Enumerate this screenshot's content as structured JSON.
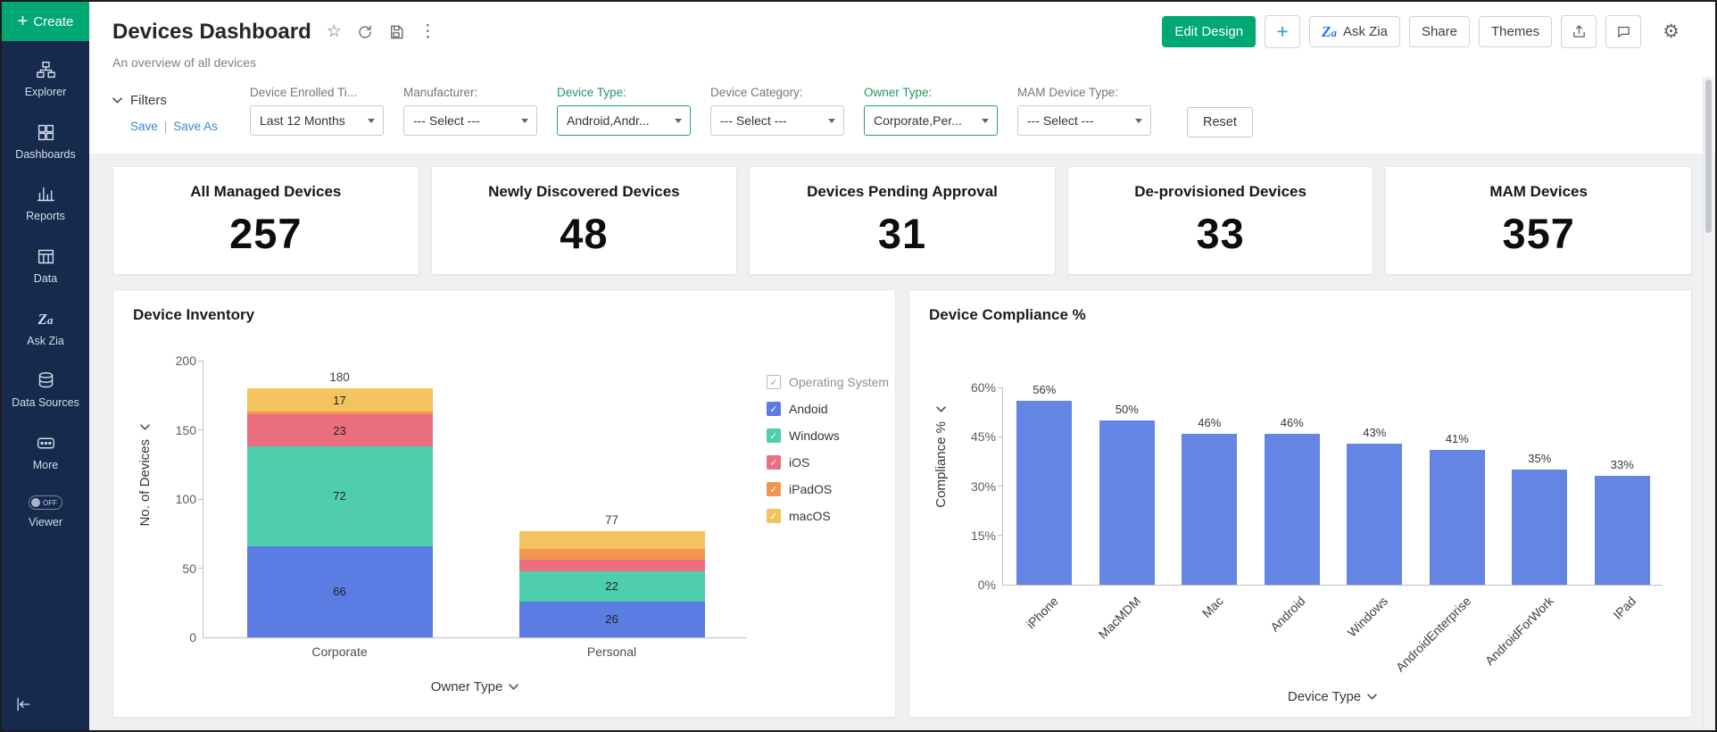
{
  "sidebar": {
    "create_label": "Create",
    "items": [
      {
        "label": "Explorer"
      },
      {
        "label": "Dashboards"
      },
      {
        "label": "Reports"
      },
      {
        "label": "Data"
      },
      {
        "label": "Ask Zia"
      },
      {
        "label": "Data Sources"
      },
      {
        "label": "More"
      }
    ],
    "viewer": {
      "label": "Viewer",
      "toggle": "OFF"
    }
  },
  "header": {
    "title": "Devices Dashboard",
    "subtitle": "An overview of all devices",
    "edit_design": "Edit Design",
    "ask_zia": "Ask Zia",
    "share": "Share",
    "themes": "Themes"
  },
  "filters": {
    "title": "Filters",
    "save": "Save",
    "save_as": "Save As",
    "reset": "Reset",
    "fields": [
      {
        "label": "Device Enrolled Ti...",
        "value": "Last 12 Months",
        "active": false
      },
      {
        "label": "Manufacturer:",
        "value": "--- Select ---",
        "active": false
      },
      {
        "label": "Device Type:",
        "value": "Android,Andr...",
        "active": true
      },
      {
        "label": "Device Category:",
        "value": "--- Select ---",
        "active": false
      },
      {
        "label": "Owner Type:",
        "value": "Corporate,Per...",
        "active": true
      },
      {
        "label": "MAM Device Type:",
        "value": "--- Select ---",
        "active": false
      }
    ]
  },
  "kpis": [
    {
      "label": "All Managed Devices",
      "value": "257"
    },
    {
      "label": "Newly Discovered Devices",
      "value": "48"
    },
    {
      "label": "Devices Pending Approval",
      "value": "31"
    },
    {
      "label": "De-provisioned Devices",
      "value": "33"
    },
    {
      "label": "MAM Devices",
      "value": "357"
    }
  ],
  "chart_data": [
    {
      "type": "bar",
      "stacked": true,
      "title": "Device Inventory",
      "categories": [
        "Corporate",
        "Personal"
      ],
      "series": [
        {
          "name": "Andoid",
          "color": "#5b7ce2",
          "values": [
            66,
            26
          ]
        },
        {
          "name": "Windows",
          "color": "#4fceae",
          "values": [
            72,
            22
          ]
        },
        {
          "name": "iOS",
          "color": "#ec6f80",
          "values": [
            23,
            8
          ]
        },
        {
          "name": "iPadOS",
          "color": "#f2954f",
          "values": [
            2,
            8
          ]
        },
        {
          "name": "macOS",
          "color": "#f2c35f",
          "values": [
            17,
            13
          ]
        }
      ],
      "totals": [
        180,
        77
      ],
      "xlabel": "Owner Type",
      "ylabel": "No. of Devices",
      "ylim": [
        0,
        200
      ],
      "yticks": [
        0,
        50,
        100,
        150,
        200
      ],
      "legend_title": "Operating System",
      "legend_position": "right",
      "grid": false
    },
    {
      "type": "bar",
      "title": "Device Compliance %",
      "categories": [
        "iPhone",
        "MacMDM",
        "Mac",
        "Android",
        "Windows",
        "AndroidEnterprise",
        "AndroidForWork",
        "IPad"
      ],
      "values": [
        56,
        50,
        46,
        46,
        43,
        41,
        35,
        33
      ],
      "value_labels": [
        "56%",
        "50%",
        "46%",
        "46%",
        "43%",
        "41%",
        "35%",
        "33%"
      ],
      "bar_color": "#6485e4",
      "xlabel": "Device Type",
      "ylabel": "Compliance %",
      "ylim": [
        0,
        60
      ],
      "ytick_values": [
        0,
        15,
        30,
        45,
        60
      ],
      "ytick_labels": [
        "0%",
        "15%",
        "30%",
        "45%",
        "60%"
      ],
      "grid": false
    }
  ],
  "icons": {
    "plus": "+",
    "star": "☆",
    "kebab": "⋮",
    "gear": "⚙",
    "check": "✓",
    "pipe": "|",
    "zia": "Z"
  },
  "colors": {
    "accent_green": "#00a874",
    "active_filter_green": "#1d9b5f",
    "link_blue": "#3e82d6",
    "sidebar_bg": "#152a4c",
    "compliance_bar": "#6485e4"
  }
}
